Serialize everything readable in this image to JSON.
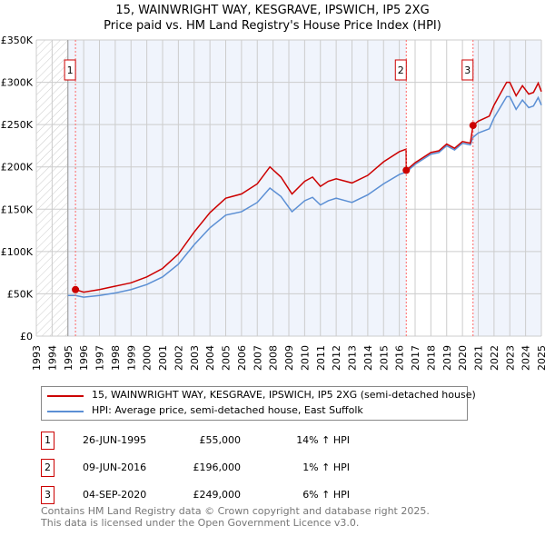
{
  "chart_data": {
    "type": "line",
    "title": "15, WAINWRIGHT WAY, KESGRAVE, IPSWICH, IP5 2XG",
    "subtitle": "Price paid vs. HM Land Registry's House Price Index (HPI)",
    "xlim": [
      1993,
      2025
    ],
    "ylim": [
      0,
      350000
    ],
    "y_ticks": [
      {
        "v": 0,
        "l": "£0"
      },
      {
        "v": 50000,
        "l": "£50K"
      },
      {
        "v": 100000,
        "l": "£100K"
      },
      {
        "v": 150000,
        "l": "£150K"
      },
      {
        "v": 200000,
        "l": "£200K"
      },
      {
        "v": 250000,
        "l": "£250K"
      },
      {
        "v": 300000,
        "l": "£300K"
      },
      {
        "v": 350000,
        "l": "£350K"
      }
    ],
    "x_ticks": [
      "1993",
      "1994",
      "1995",
      "1996",
      "1997",
      "1998",
      "1999",
      "2000",
      "2001",
      "2002",
      "2003",
      "2004",
      "2005",
      "2006",
      "2007",
      "2008",
      "2009",
      "2010",
      "2011",
      "2012",
      "2013",
      "2014",
      "2015",
      "2016",
      "2017",
      "2018",
      "2019",
      "2020",
      "2021",
      "2022",
      "2023",
      "2024",
      "2025"
    ],
    "grid": true,
    "series": [
      {
        "name": "15, WAINWRIGHT WAY, KESGRAVE, IPSWICH, IP5 2XG (semi-detached house)",
        "color": "#cc0000",
        "x": [
          1995.48,
          1996,
          1997,
          1998,
          1999,
          2000,
          2001,
          2002,
          2003,
          2004,
          2005,
          2006,
          2007,
          2007.8,
          2008.5,
          2009.2,
          2010,
          2010.5,
          2011,
          2011.5,
          2012,
          2013,
          2014,
          2015,
          2016,
          2016.43,
          2016.44,
          2017,
          2018,
          2018.5,
          2019,
          2019.5,
          2020,
          2020.5,
          2020.67,
          2021,
          2021.7,
          2022,
          2022.8,
          2023,
          2023.4,
          2023.8,
          2024.2,
          2024.5,
          2024.8,
          2025
        ],
        "y": [
          55000,
          52000,
          55000,
          59000,
          63000,
          70000,
          80000,
          97000,
          123000,
          146000,
          163000,
          168000,
          180000,
          200000,
          188000,
          168000,
          183000,
          188000,
          177000,
          183000,
          186000,
          181000,
          190000,
          206000,
          218000,
          221000,
          196000,
          205000,
          217000,
          219000,
          227000,
          222000,
          230000,
          228000,
          249000,
          254000,
          260000,
          273000,
          300000,
          300000,
          284000,
          296000,
          286000,
          288000,
          299000,
          289000
        ]
      },
      {
        "name": "HPI: Average price, semi-detached house, East Suffolk",
        "color": "#5b8fd4",
        "x": [
          1995,
          1995.48,
          1996,
          1997,
          1998,
          1999,
          2000,
          2001,
          2002,
          2003,
          2004,
          2005,
          2006,
          2007,
          2007.8,
          2008.5,
          2009.2,
          2010,
          2010.5,
          2011,
          2011.5,
          2012,
          2013,
          2014,
          2015,
          2016,
          2016.44,
          2017,
          2018,
          2018.5,
          2019,
          2019.5,
          2020,
          2020.5,
          2020.67,
          2021,
          2021.7,
          2022,
          2022.8,
          2023,
          2023.4,
          2023.8,
          2024.2,
          2024.5,
          2024.8,
          2025
        ],
        "y": [
          48000,
          48000,
          46000,
          48000,
          51000,
          55000,
          61000,
          70000,
          85000,
          108000,
          128000,
          143000,
          147000,
          158000,
          175000,
          165000,
          147000,
          160000,
          164000,
          155000,
          160000,
          163000,
          158000,
          167000,
          180000,
          191000,
          194000,
          203000,
          215000,
          217000,
          225000,
          220000,
          228000,
          226000,
          235000,
          240000,
          245000,
          258000,
          283000,
          283000,
          268000,
          279000,
          270000,
          272000,
          282000,
          273000
        ]
      }
    ],
    "sales": [
      {
        "n": "1",
        "date": "26-JUN-1995",
        "x": 1995.48,
        "price": "£55,000",
        "value": 55000,
        "hpi": "14% ↑ HPI"
      },
      {
        "n": "2",
        "date": "09-JUN-2016",
        "x": 2016.44,
        "price": "£196,000",
        "value": 196000,
        "hpi": "1% ↑ HPI"
      },
      {
        "n": "3",
        "date": "04-SEP-2020",
        "x": 2020.67,
        "price": "£249,000",
        "value": 249000,
        "hpi": "6% ↑ HPI"
      }
    ]
  },
  "footer": {
    "line1": "Contains HM Land Registry data © Crown copyright and database right 2025.",
    "line2": "This data is licensed under the Open Government Licence v3.0."
  }
}
